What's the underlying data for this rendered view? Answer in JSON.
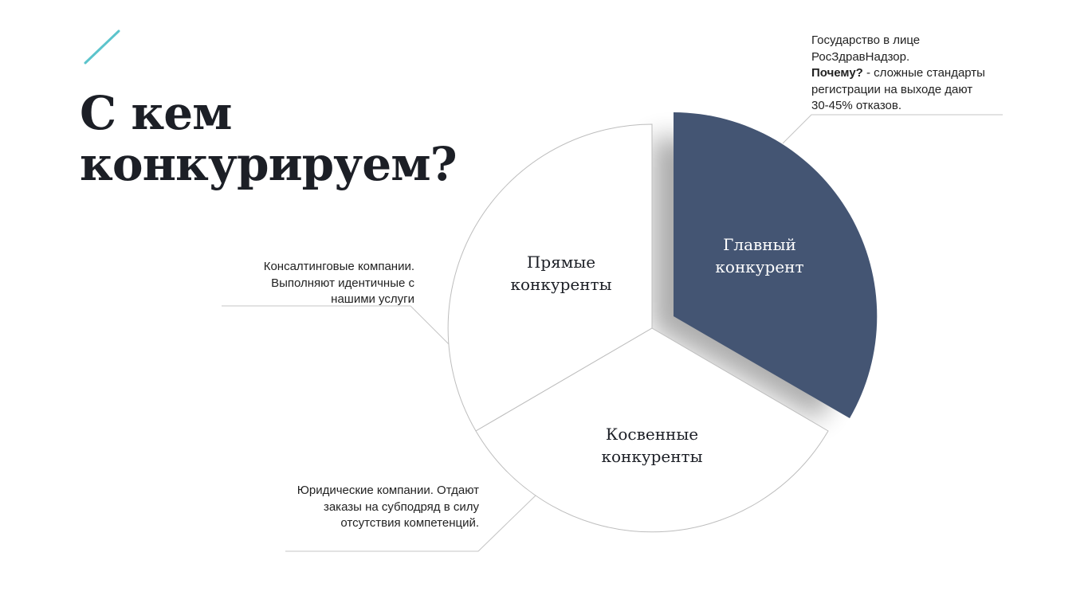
{
  "title": {
    "line1": "С кем",
    "line2": "конкурируем?"
  },
  "colors": {
    "accent": "#5cc4cc",
    "main_segment": "#445573",
    "segment_border": "#bdbdbd",
    "leader_line": "#c4c4c4"
  },
  "segments": {
    "main": {
      "line1": "Главный",
      "line2": "конкурент"
    },
    "direct": {
      "line1": "Прямые",
      "line2": "конкуренты"
    },
    "indirect": {
      "line1": "Косвенные",
      "line2": "конкуренты"
    }
  },
  "notes": {
    "main": {
      "line1": "Государство в лице",
      "line2": "РосЗдравНадзор.",
      "why_label": "Почему?",
      "why_text": " - сложные стандарты",
      "line4": "регистрации на выходе дают",
      "line5": "30-45% отказов."
    },
    "direct": {
      "line1": "Консалтинговые компании.",
      "line2": "Выполняют идентичные с",
      "line3": "нашими услуги"
    },
    "indirect": {
      "line1": "Юридические компании. Отдают",
      "line2": "заказы на субподряд в силу",
      "line3": "отсутствия компетенций."
    }
  }
}
